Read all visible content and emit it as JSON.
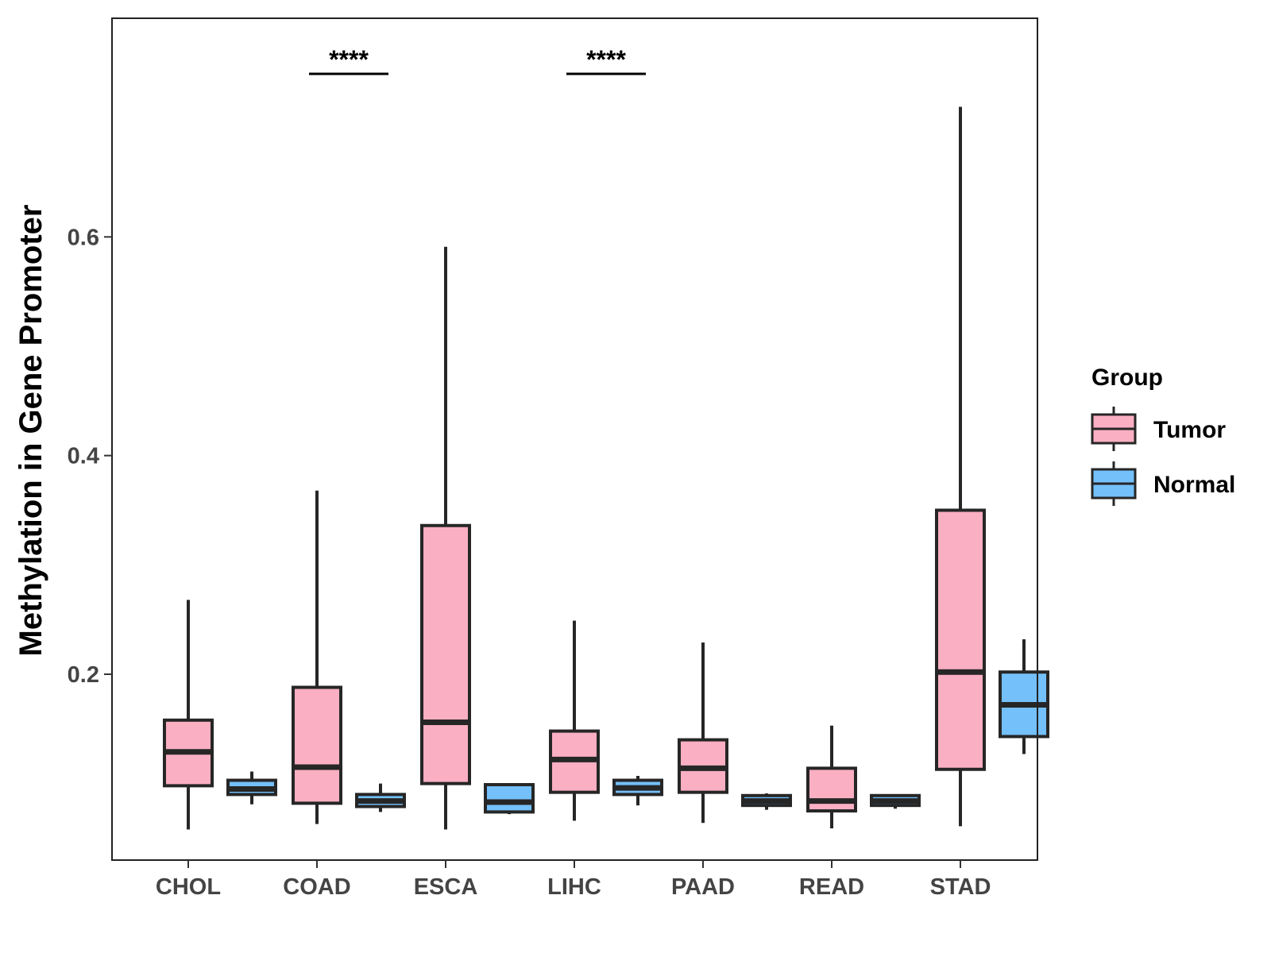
{
  "chart_data": {
    "type": "boxplot",
    "ylabel": "Methylation in Gene Promoter",
    "xlabel": "",
    "ylim": [
      0.03,
      0.8
    ],
    "yticks": [
      0.2,
      0.4,
      0.6
    ],
    "ytick_labels": [
      "0.2",
      "0.4",
      "0.6"
    ],
    "categories": [
      "CHOL",
      "COAD",
      "ESCA",
      "LIHC",
      "PAAD",
      "READ",
      "STAD"
    ],
    "legend": {
      "title": "Group",
      "position": "right",
      "entries": [
        {
          "name": "Tumor",
          "color": "#FAAFC2"
        },
        {
          "name": "Normal",
          "color": "#74C0FA"
        }
      ]
    },
    "series": [
      {
        "name": "Tumor",
        "color": "#FAAFC2",
        "boxes": [
          {
            "category": "CHOL",
            "min": 0.058,
            "q1": 0.098,
            "median": 0.129,
            "q3": 0.158,
            "max": 0.268
          },
          {
            "category": "COAD",
            "min": 0.063,
            "q1": 0.082,
            "median": 0.115,
            "q3": 0.188,
            "max": 0.368
          },
          {
            "category": "ESCA",
            "min": 0.058,
            "q1": 0.1,
            "median": 0.156,
            "q3": 0.336,
            "max": 0.591
          },
          {
            "category": "LIHC",
            "min": 0.066,
            "q1": 0.092,
            "median": 0.122,
            "q3": 0.148,
            "max": 0.249
          },
          {
            "category": "PAAD",
            "min": 0.064,
            "q1": 0.092,
            "median": 0.114,
            "q3": 0.14,
            "max": 0.229
          },
          {
            "category": "READ",
            "min": 0.059,
            "q1": 0.075,
            "median": 0.084,
            "q3": 0.114,
            "max": 0.153
          },
          {
            "category": "STAD",
            "min": 0.061,
            "q1": 0.113,
            "median": 0.202,
            "q3": 0.35,
            "max": 0.719
          }
        ]
      },
      {
        "name": "Normal",
        "color": "#74C0FA",
        "boxes": [
          {
            "category": "CHOL",
            "min": 0.081,
            "q1": 0.09,
            "median": 0.095,
            "q3": 0.103,
            "max": 0.111
          },
          {
            "category": "COAD",
            "min": 0.074,
            "q1": 0.079,
            "median": 0.084,
            "q3": 0.09,
            "max": 0.1
          },
          {
            "category": "ESCA",
            "min": 0.072,
            "q1": 0.074,
            "median": 0.083,
            "q3": 0.099,
            "max": 0.1
          },
          {
            "category": "LIHC",
            "min": 0.08,
            "q1": 0.09,
            "median": 0.096,
            "q3": 0.103,
            "max": 0.107
          },
          {
            "category": "PAAD",
            "min": 0.076,
            "q1": 0.08,
            "median": 0.084,
            "q3": 0.089,
            "max": 0.091
          },
          {
            "category": "READ",
            "min": 0.077,
            "q1": 0.08,
            "median": 0.084,
            "q3": 0.089,
            "max": 0.09
          },
          {
            "category": "STAD",
            "min": 0.127,
            "q1": 0.143,
            "median": 0.172,
            "q3": 0.202,
            "max": 0.232
          }
        ]
      }
    ],
    "annotations": [
      {
        "category": "COAD",
        "text": "****"
      },
      {
        "category": "LIHC",
        "text": "****"
      }
    ]
  }
}
